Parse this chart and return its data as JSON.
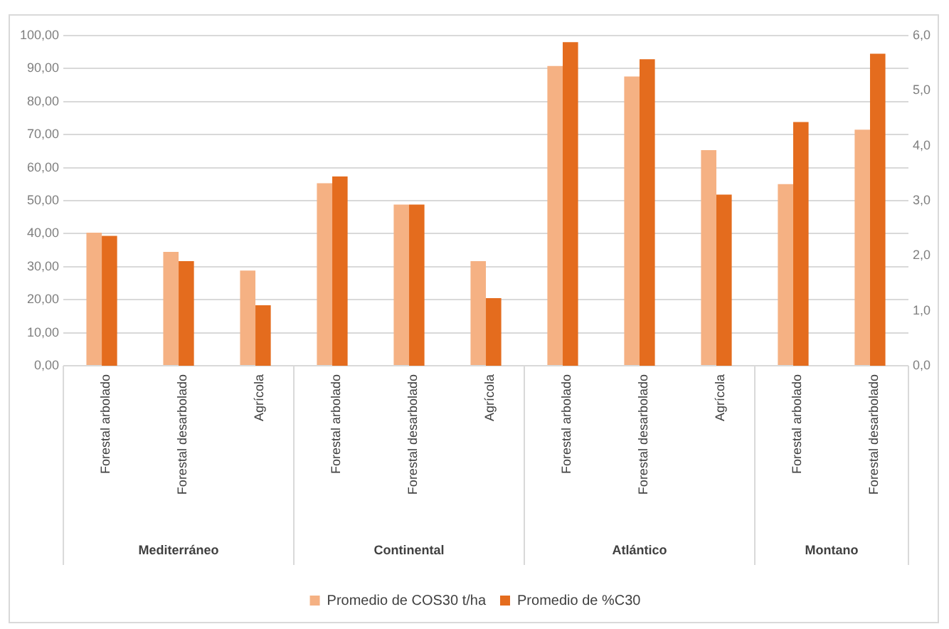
{
  "chart_data": {
    "type": "bar",
    "categories": [
      "Forestal arbolado",
      "Forestal desarbolado",
      "Agrícola",
      "Forestal arbolado",
      "Forestal desarbolado",
      "Agrícola",
      "Forestal arbolado",
      "Forestal desarbolado",
      "Agrícola",
      "Forestal arbolado",
      "Forestal desarbolado"
    ],
    "annotations": [
      "Mediterráneo",
      "Continental",
      "Atlántico",
      "Montano"
    ],
    "series": [
      {
        "name": "Promedio de COS30 t/ha",
        "color": "#f5b183",
        "values": [
          40.3,
          34.5,
          28.8,
          55.3,
          48.8,
          31.7,
          90.8,
          87.6,
          65.3,
          55.0,
          71.5
        ]
      },
      {
        "name": "Promedio de %C30",
        "color": "#e46c1e",
        "axis": "y2",
        "values": [
          2.36,
          1.9,
          1.1,
          3.44,
          2.93,
          1.23,
          5.88,
          5.57,
          3.11,
          4.43,
          5.67
        ]
      }
    ],
    "ylim": [
      0,
      100
    ],
    "yticks": [
      {
        "value": 0,
        "label": "0,00"
      },
      {
        "value": 10,
        "label": "10,00"
      },
      {
        "value": 20,
        "label": "20,00"
      },
      {
        "value": 30,
        "label": "30,00"
      },
      {
        "value": 40,
        "label": "40,00"
      },
      {
        "value": 50,
        "label": "50,00"
      },
      {
        "value": 60,
        "label": "60,00"
      },
      {
        "value": 70,
        "label": "70,00"
      },
      {
        "value": 80,
        "label": "80,00"
      },
      {
        "value": 90,
        "label": "90,00"
      },
      {
        "value": 100,
        "label": "100,00"
      }
    ],
    "y2lim": [
      0,
      6
    ],
    "y2ticks": [
      {
        "value": 0,
        "label": "0,0"
      },
      {
        "value": 1,
        "label": "1,0"
      },
      {
        "value": 2,
        "label": "2,0"
      },
      {
        "value": 3,
        "label": "3,0"
      },
      {
        "value": 4,
        "label": "4,0"
      },
      {
        "value": 5,
        "label": "5,0"
      },
      {
        "value": 6,
        "label": "6,0"
      }
    ],
    "grid": "y",
    "legend": "bottom"
  }
}
